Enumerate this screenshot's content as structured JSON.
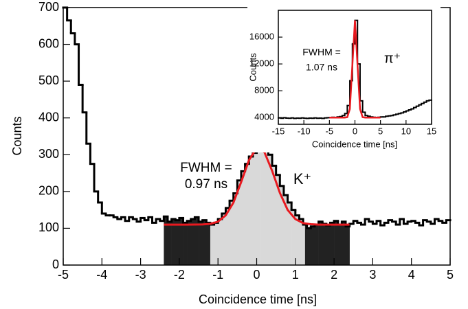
{
  "chart_data": [
    {
      "type": "histogram",
      "x_label": "Coincidence time [ns]",
      "y_label": "Counts",
      "bins": [
        -5,
        -4.9,
        -4.8,
        -4.7,
        -4.6,
        -4.5,
        -4.4,
        -4.3,
        -4.2,
        -4.1,
        -4,
        -3.9,
        -3.8,
        -3.7,
        -3.6,
        -3.5,
        -3.4,
        -3.3,
        -3.2,
        -3.1,
        -3,
        -2.9,
        -2.8,
        -2.7,
        -2.6,
        -2.5,
        -2.4,
        -2.3,
        -2.2,
        -2.1,
        -2,
        -1.9,
        -1.8,
        -1.7,
        -1.6,
        -1.5,
        -1.4,
        -1.3,
        -1.2,
        -1.1,
        -1,
        -0.9,
        -0.8,
        -0.7,
        -0.6,
        -0.5,
        -0.4,
        -0.3,
        -0.2,
        -0.1,
        0,
        0.1,
        0.2,
        0.3,
        0.4,
        0.5,
        0.6,
        0.7,
        0.8,
        0.9,
        1,
        1.1,
        1.2,
        1.3,
        1.4,
        1.5,
        1.6,
        1.7,
        1.8,
        1.9,
        2,
        2.1,
        2.2,
        2.3,
        2.4,
        2.5,
        2.6,
        2.7,
        2.8,
        2.9,
        3,
        3.1,
        3.2,
        3.3,
        3.4,
        3.5,
        3.6,
        3.7,
        3.8,
        3.9,
        4,
        4.1,
        4.2,
        4.3,
        4.4,
        4.5,
        4.6,
        4.7,
        4.8,
        4.9,
        5
      ],
      "values": [
        700,
        665,
        630,
        600,
        490,
        415,
        330,
        275,
        200,
        170,
        140,
        135,
        135,
        130,
        125,
        130,
        120,
        130,
        125,
        118,
        128,
        122,
        130,
        115,
        125,
        120,
        132,
        118,
        125,
        122,
        128,
        115,
        120,
        125,
        130,
        118,
        122,
        115,
        110,
        115,
        125,
        140,
        155,
        175,
        195,
        230,
        255,
        275,
        295,
        305,
        320,
        322,
        315,
        300,
        270,
        245,
        215,
        190,
        170,
        150,
        135,
        125,
        110,
        100,
        105,
        110,
        118,
        112,
        108,
        115,
        120,
        110,
        118,
        105,
        112,
        120,
        115,
        110,
        125,
        118,
        112,
        120,
        108,
        115,
        122,
        118,
        110,
        125,
        112,
        118,
        120,
        115,
        108,
        122,
        118,
        112,
        125,
        120,
        115,
        122
      ],
      "color": "#000000",
      "fit": {
        "color": "#e8191f",
        "x": [
          -2.4,
          -2.2,
          -2,
          -1.8,
          -1.6,
          -1.4,
          -1.2,
          -1,
          -0.8,
          -0.6,
          -0.4,
          -0.2,
          0,
          0.2,
          0.4,
          0.6,
          0.8,
          1,
          1.2,
          1.4,
          1.6,
          1.8,
          2,
          2.2,
          2.4
        ],
        "values": [
          110,
          110,
          110,
          110,
          110.1,
          110.4,
          112,
          118,
          135,
          170,
          226,
          285,
          318.5,
          307,
          256,
          196,
          150,
          125,
          114,
          111,
          110,
          110,
          110,
          110,
          110
        ]
      },
      "regions": [
        {
          "range": [
            -2.4,
            -1.2
          ],
          "color": "#222222"
        },
        {
          "range": [
            -1.2,
            1.25
          ],
          "color": "#d9d9d9"
        },
        {
          "range": [
            1.25,
            2.4
          ],
          "color": "#222222"
        }
      ],
      "annotations": [
        "FWHM =",
        "0.97 ns",
        "K⁺"
      ],
      "xlim": [
        -5,
        5
      ],
      "ylim": [
        0,
        700
      ],
      "xticks": [
        -5,
        -4,
        -3,
        -2,
        -1,
        0,
        1,
        2,
        3,
        4,
        5
      ],
      "yticks": [
        0,
        100,
        200,
        300,
        400,
        500,
        600,
        700
      ]
    },
    {
      "type": "histogram",
      "x_label": "Coincidence time [ns]",
      "y_label": "Counts",
      "bins": [
        -15,
        -14.5,
        -14,
        -13.5,
        -13,
        -12.5,
        -12,
        -11.5,
        -11,
        -10.5,
        -10,
        -9.5,
        -9,
        -8.5,
        -8,
        -7.5,
        -7,
        -6.5,
        -6,
        -5.5,
        -5,
        -4.5,
        -4,
        -3.5,
        -3,
        -2.5,
        -2,
        -1.5,
        -1,
        -0.5,
        0,
        0.5,
        1,
        1.5,
        2,
        2.5,
        3,
        3.5,
        4,
        4.5,
        5,
        5.5,
        6,
        6.5,
        7,
        7.5,
        8,
        8.5,
        9,
        9.5,
        10,
        10.5,
        11,
        11.5,
        12,
        12.5,
        13,
        13.5,
        14,
        14.5,
        15
      ],
      "values": [
        3950,
        3900,
        3980,
        3920,
        3900,
        3950,
        3880,
        3920,
        3900,
        3950,
        3900,
        3880,
        3920,
        3900,
        3950,
        3900,
        3920,
        3880,
        3950,
        3980,
        4000,
        4050,
        4000,
        4100,
        4150,
        4300,
        4600,
        5800,
        9500,
        15000,
        18500,
        12000,
        6500,
        4800,
        4300,
        4200,
        4100,
        4050,
        4000,
        4050,
        4100,
        4100,
        4200,
        4250,
        4300,
        4400,
        4500,
        4600,
        4700,
        4850,
        5000,
        5150,
        5300,
        5500,
        5700,
        5900,
        6100,
        6300,
        6500,
        6600
      ],
      "color": "#000000",
      "fit": {
        "color": "#e8191f",
        "x": [
          -5,
          -4.5,
          -4,
          -3.5,
          -3,
          -2.5,
          -2,
          -1.5,
          -1,
          -0.5,
          0,
          0.5,
          1,
          1.5,
          2,
          2.5,
          3,
          3.5,
          4,
          4.5,
          5
        ],
        "values": [
          4000,
          4000,
          4000,
          4000,
          4000,
          4000,
          4000,
          4060,
          5280,
          11900,
          18500,
          11900,
          5280,
          4060,
          4000,
          4000,
          4000,
          4000,
          4000,
          4000,
          4000
        ]
      },
      "annotations": [
        "FWHM =",
        "1.07 ns",
        "π⁺"
      ],
      "xlim": [
        -15,
        15
      ],
      "ylim": [
        3000,
        20000
      ],
      "xticks": [
        -15,
        -10,
        -5,
        0,
        5,
        10,
        15
      ],
      "yticks": [
        4000,
        8000,
        12000,
        16000
      ]
    }
  ]
}
